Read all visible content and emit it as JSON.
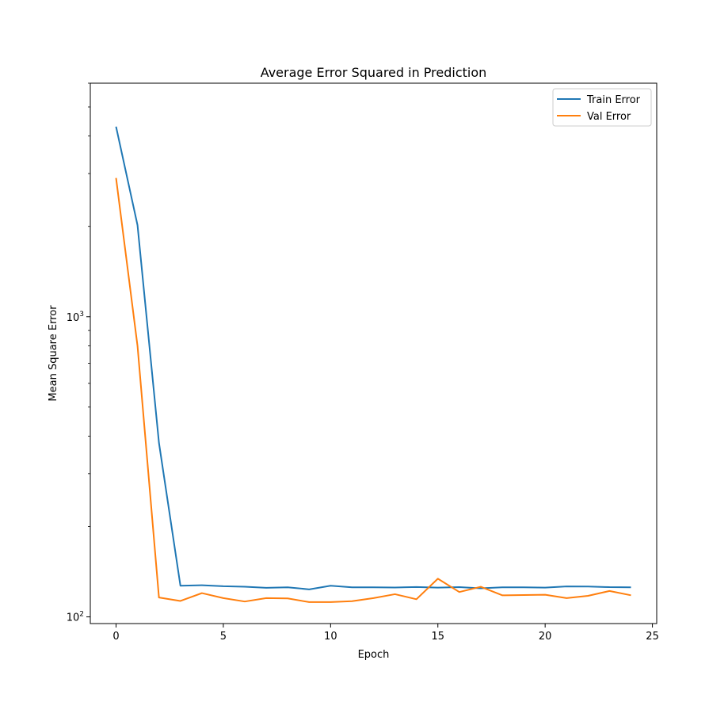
{
  "chart_data": {
    "type": "line",
    "title": "Average Error Squared in Prediction",
    "xlabel": "Epoch",
    "ylabel": "Mean Square Error",
    "yscale": "log",
    "xlim": [
      -1.2,
      25.2
    ],
    "ylim": [
      95,
      6000
    ],
    "x_ticks": [
      0,
      5,
      10,
      15,
      20,
      25
    ],
    "y_ticks": [
      {
        "value": 100,
        "base": "10",
        "exp": "2"
      },
      {
        "value": 1000,
        "base": "10",
        "exp": "3"
      }
    ],
    "grid": false,
    "legend_position": "top-right",
    "x": [
      0,
      1,
      2,
      3,
      4,
      5,
      6,
      7,
      8,
      9,
      10,
      11,
      12,
      13,
      14,
      15,
      16,
      17,
      18,
      19,
      20,
      21,
      22,
      23,
      24
    ],
    "series": [
      {
        "name": "Train Error",
        "color": "#1f77b4",
        "values": [
          4300,
          2020,
          380,
          127,
          127.5,
          126.5,
          126,
          125,
          125.5,
          123.5,
          127,
          125.5,
          125.5,
          125.3,
          125.7,
          125.2,
          125.6,
          124.5,
          125.5,
          125.5,
          125.2,
          126.3,
          126.2,
          125.6,
          125.5
        ]
      },
      {
        "name": "Val Error",
        "color": "#ff7f0e",
        "values": [
          2900,
          800,
          116,
          113,
          120,
          115.5,
          112.5,
          115.5,
          115.2,
          112,
          112,
          112.8,
          115.5,
          119,
          114.5,
          134,
          121,
          126,
          118,
          118.2,
          118.5,
          115.5,
          117.5,
          122,
          118
        ]
      }
    ]
  }
}
